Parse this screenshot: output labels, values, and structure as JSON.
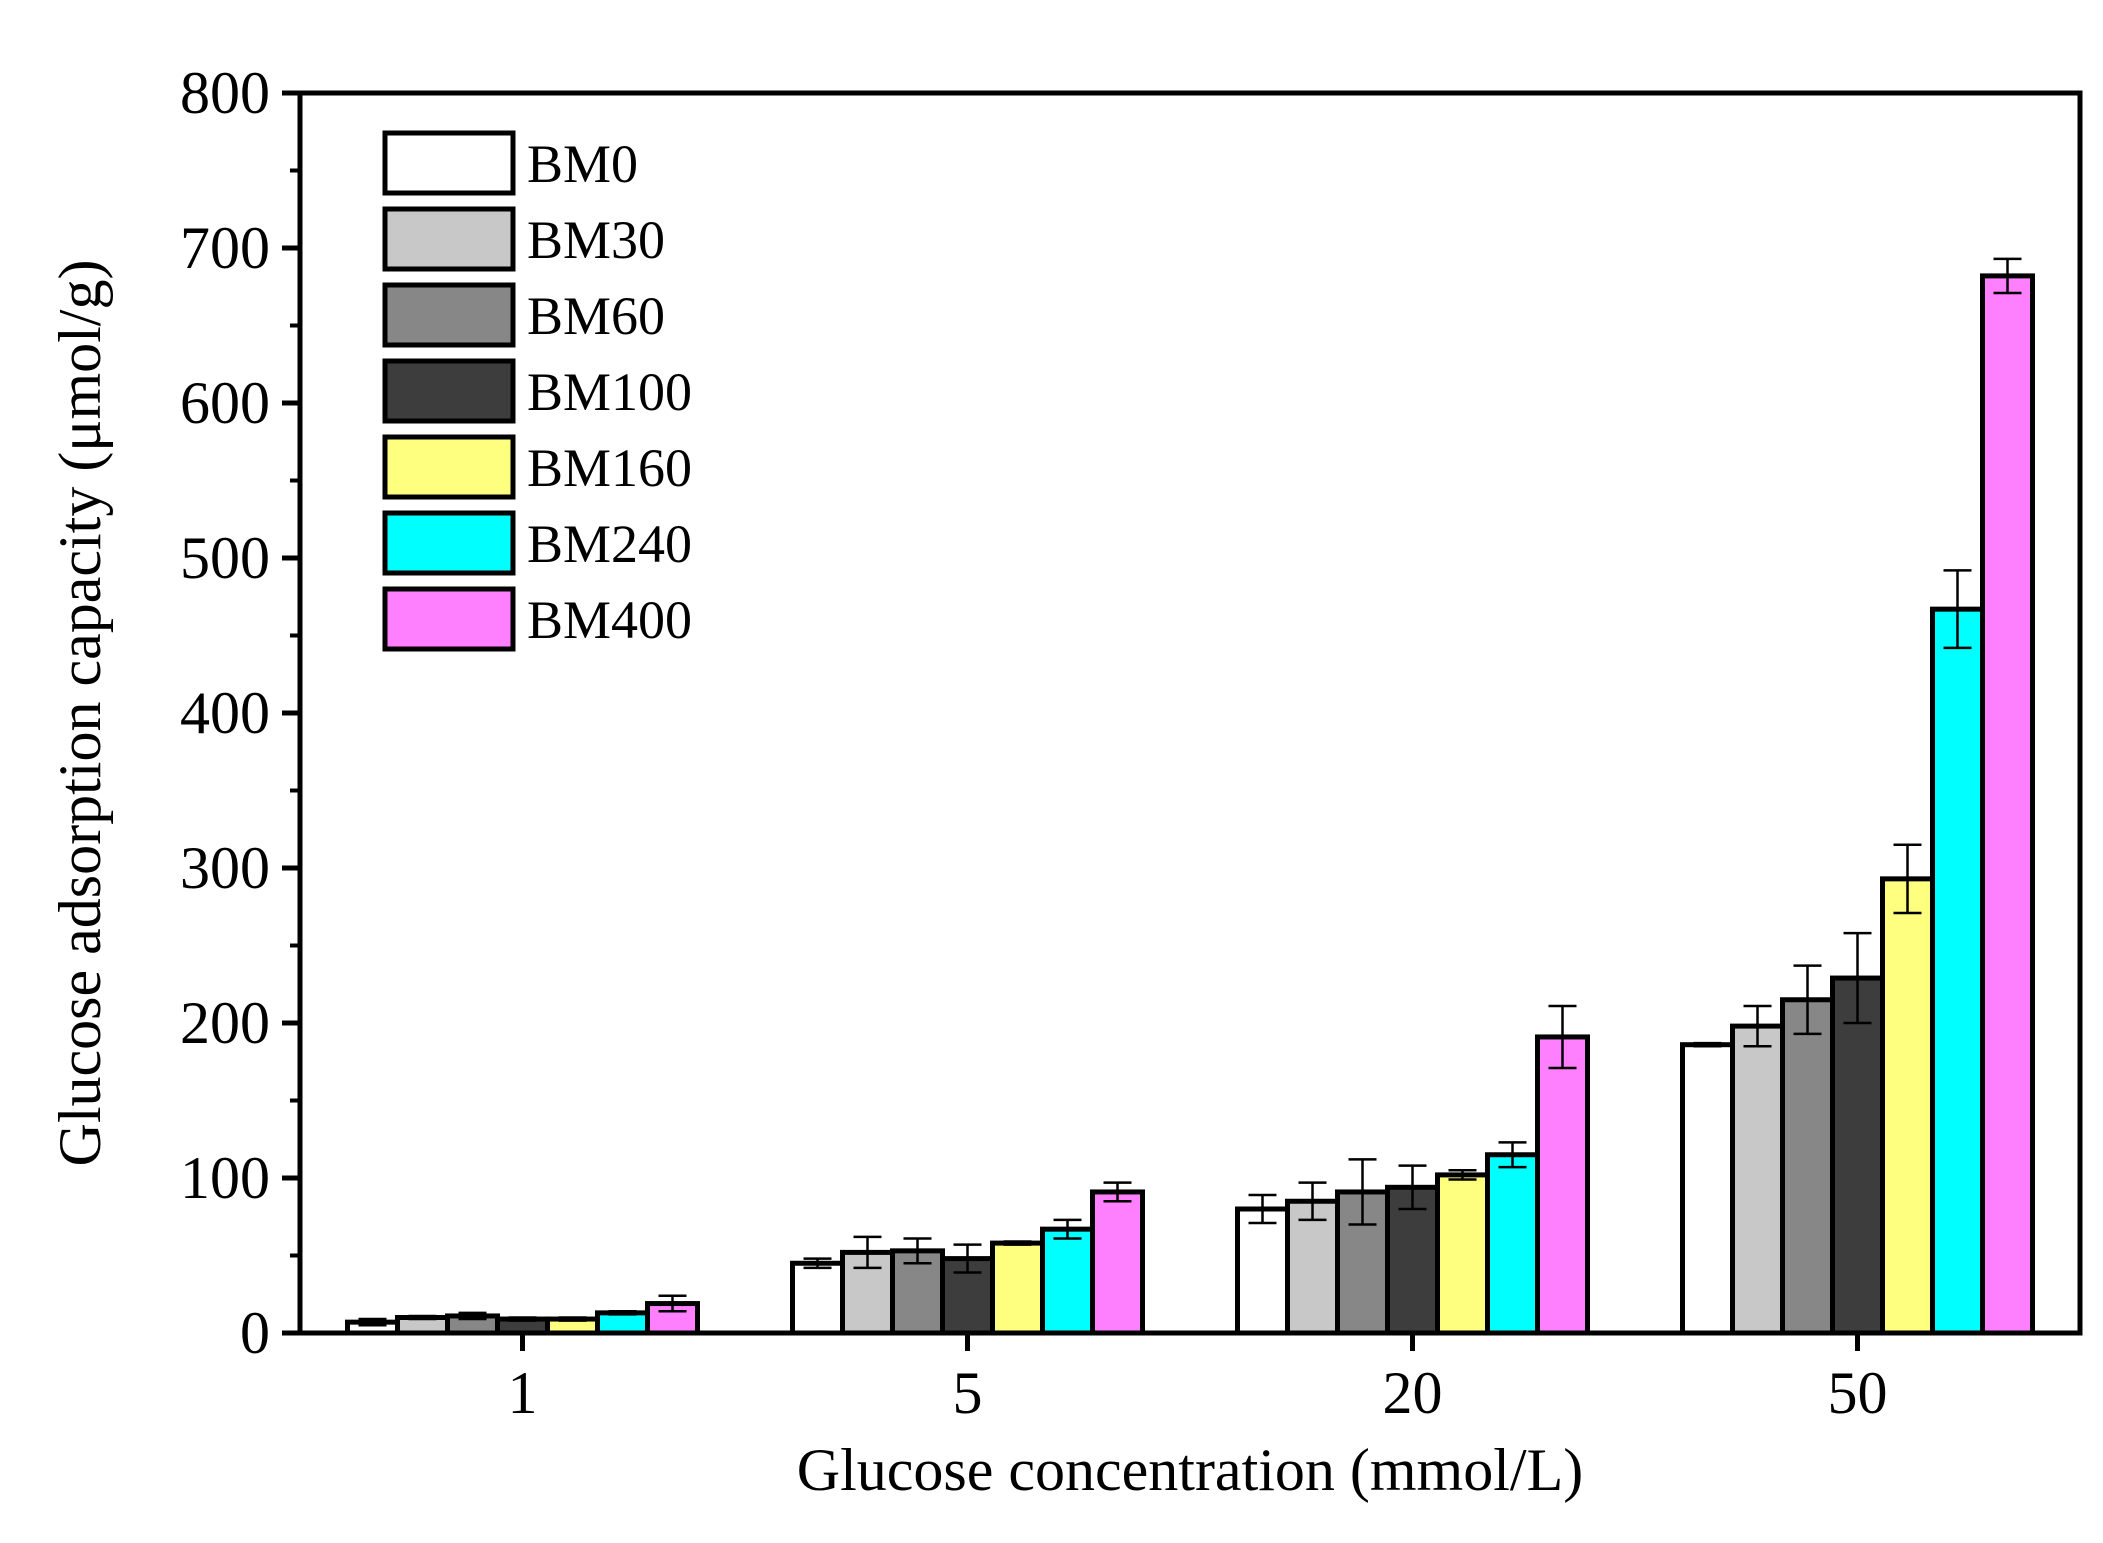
{
  "chart_data": {
    "type": "bar",
    "title": "",
    "xlabel": "Glucose concentration (mmol/L)",
    "ylabel": "Glucose adsorption capacity (μmol/g)",
    "categories": [
      "1",
      "5",
      "20",
      "50"
    ],
    "ylim": [
      0,
      800
    ],
    "yticks": [
      0,
      100,
      200,
      300,
      400,
      500,
      600,
      700,
      800
    ],
    "ytick_labels": [
      "0",
      "100",
      "200",
      "300",
      "400",
      "500",
      "600",
      "700",
      "800"
    ],
    "grid": false,
    "legend_position": "top-left",
    "series": [
      {
        "name": "BM0",
        "color": "#ffffff",
        "values": [
          7,
          45,
          80,
          186
        ],
        "errors": [
          2,
          3,
          9,
          1
        ]
      },
      {
        "name": "BM30",
        "color": "#c8c8c8",
        "values": [
          10,
          52,
          85,
          198
        ],
        "errors": [
          1,
          10,
          12,
          13
        ]
      },
      {
        "name": "BM60",
        "color": "#878787",
        "values": [
          11,
          53,
          91,
          215
        ],
        "errors": [
          2,
          8,
          21,
          22
        ]
      },
      {
        "name": "BM100",
        "color": "#3d3d3d",
        "values": [
          9,
          48,
          94,
          229
        ],
        "errors": [
          1,
          9,
          14,
          29
        ]
      },
      {
        "name": "BM160",
        "color": "#ffff7f",
        "values": [
          9,
          58,
          102,
          293
        ],
        "errors": [
          1,
          1,
          3,
          22
        ]
      },
      {
        "name": "BM240",
        "color": "#00ffff",
        "values": [
          13,
          67,
          115,
          467
        ],
        "errors": [
          1,
          6,
          8,
          25
        ]
      },
      {
        "name": "BM400",
        "color": "#ff80ff",
        "values": [
          19,
          91,
          191,
          682
        ],
        "errors": [
          5,
          6,
          20,
          11
        ]
      }
    ]
  }
}
